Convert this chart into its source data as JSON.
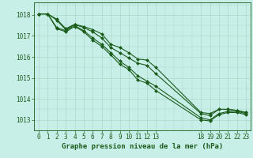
{
  "title": "Graphe pression niveau de la mer (hPa)",
  "background_color": "#c8eee8",
  "grid_color": "#aad8cc",
  "line_color": "#1a5c1a",
  "xlim": [
    -0.5,
    23.5
  ],
  "ylim": [
    1012.5,
    1018.6
  ],
  "yticks": [
    1013,
    1014,
    1015,
    1016,
    1017,
    1018
  ],
  "xtick_positions": [
    0,
    1,
    2,
    3,
    4,
    5,
    6,
    7,
    8,
    9,
    10,
    11,
    12,
    13,
    18,
    19,
    20,
    21,
    22,
    23
  ],
  "xtick_labels": [
    "0",
    "1",
    "2",
    "3",
    "4",
    "5",
    "6",
    "7",
    "8",
    "9",
    "10",
    "11",
    "12",
    "13",
    "18",
    "19",
    "20",
    "21",
    "22",
    "23"
  ],
  "series": [
    {
      "x": [
        0,
        1,
        2,
        3,
        4,
        5,
        6,
        7,
        8,
        9,
        10,
        11,
        12,
        13,
        18,
        19,
        20,
        21,
        22,
        23
      ],
      "y": [
        1018.05,
        1018.05,
        1017.8,
        1017.35,
        1017.55,
        1017.45,
        1017.3,
        1017.1,
        1016.6,
        1016.45,
        1016.2,
        1015.9,
        1015.85,
        1015.5,
        1013.35,
        1013.3,
        1013.5,
        1013.5,
        1013.45,
        1013.35
      ]
    },
    {
      "x": [
        0,
        1,
        2,
        3,
        4,
        5,
        6,
        7,
        8,
        9,
        10,
        11,
        12,
        13,
        18,
        19,
        20,
        21,
        22,
        23
      ],
      "y": [
        1018.05,
        1018.05,
        1017.75,
        1017.3,
        1017.55,
        1017.4,
        1017.2,
        1016.9,
        1016.45,
        1016.2,
        1015.95,
        1015.7,
        1015.6,
        1015.2,
        1013.3,
        1013.2,
        1013.5,
        1013.5,
        1013.45,
        1013.35
      ]
    },
    {
      "x": [
        0,
        1,
        2,
        3,
        4,
        5,
        6,
        7,
        8,
        9,
        10,
        11,
        12,
        13,
        18,
        19,
        20,
        21,
        22,
        23
      ],
      "y": [
        1018.05,
        1018.05,
        1017.4,
        1017.25,
        1017.5,
        1017.25,
        1016.9,
        1016.6,
        1016.2,
        1015.8,
        1015.5,
        1015.1,
        1014.85,
        1014.6,
        1013.1,
        1013.0,
        1013.3,
        1013.4,
        1013.4,
        1013.3
      ]
    },
    {
      "x": [
        0,
        1,
        2,
        3,
        4,
        5,
        6,
        7,
        8,
        9,
        10,
        11,
        12,
        13,
        18,
        19,
        20,
        21,
        22,
        23
      ],
      "y": [
        1018.05,
        1018.05,
        1017.35,
        1017.2,
        1017.45,
        1017.2,
        1016.8,
        1016.5,
        1016.1,
        1015.65,
        1015.4,
        1014.9,
        1014.75,
        1014.4,
        1013.0,
        1012.95,
        1013.25,
        1013.35,
        1013.35,
        1013.25
      ]
    }
  ],
  "marker": "D",
  "marker_size": 2.0,
  "linewidth": 0.8,
  "tick_fontsize": 5.5,
  "title_fontsize": 6.5
}
